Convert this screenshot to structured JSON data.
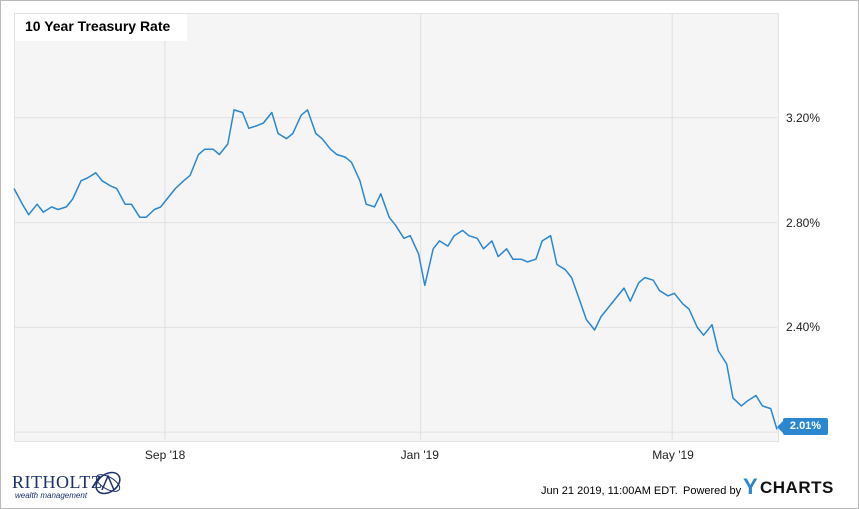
{
  "chart_data": {
    "type": "line",
    "title": "10 Year Treasury Rate",
    "x_ticks": [
      "Sep '18",
      "Jan '19",
      "May '19"
    ],
    "y_ticks": [
      "2.40%",
      "2.80%",
      "3.20%"
    ],
    "ylim": [
      1.97,
      3.6
    ],
    "grid": true,
    "last_value_label": "2.01%",
    "series": [
      {
        "color": "#2a87d0",
        "x": [
          "2018-06-21",
          "2018-06-25",
          "2018-06-28",
          "2018-07-02",
          "2018-07-05",
          "2018-07-09",
          "2018-07-12",
          "2018-07-16",
          "2018-07-19",
          "2018-07-23",
          "2018-07-26",
          "2018-07-30",
          "2018-08-02",
          "2018-08-06",
          "2018-08-09",
          "2018-08-13",
          "2018-08-16",
          "2018-08-20",
          "2018-08-23",
          "2018-08-27",
          "2018-08-30",
          "2018-09-03",
          "2018-09-06",
          "2018-09-10",
          "2018-09-13",
          "2018-09-17",
          "2018-09-20",
          "2018-09-24",
          "2018-09-27",
          "2018-10-01",
          "2018-10-04",
          "2018-10-08",
          "2018-10-11",
          "2018-10-15",
          "2018-10-18",
          "2018-10-22",
          "2018-10-25",
          "2018-10-29",
          "2018-11-01",
          "2018-11-05",
          "2018-11-08",
          "2018-11-12",
          "2018-11-15",
          "2018-11-19",
          "2018-11-22",
          "2018-11-26",
          "2018-11-29",
          "2018-12-03",
          "2018-12-06",
          "2018-12-10",
          "2018-12-13",
          "2018-12-17",
          "2018-12-20",
          "2018-12-24",
          "2018-12-27",
          "2018-12-31",
          "2019-01-03",
          "2019-01-07",
          "2019-01-10",
          "2019-01-14",
          "2019-01-17",
          "2019-01-21",
          "2019-01-24",
          "2019-01-28",
          "2019-01-31",
          "2019-02-04",
          "2019-02-07",
          "2019-02-11",
          "2019-02-14",
          "2019-02-18",
          "2019-02-21",
          "2019-02-25",
          "2019-02-28",
          "2019-03-04",
          "2019-03-07",
          "2019-03-11",
          "2019-03-14",
          "2019-03-18",
          "2019-03-21",
          "2019-03-25",
          "2019-03-28",
          "2019-04-01",
          "2019-04-04",
          "2019-04-08",
          "2019-04-11",
          "2019-04-15",
          "2019-04-18",
          "2019-04-22",
          "2019-04-25",
          "2019-04-29",
          "2019-05-02",
          "2019-05-06",
          "2019-05-09",
          "2019-05-13",
          "2019-05-16",
          "2019-05-20",
          "2019-05-23",
          "2019-05-27",
          "2019-05-30",
          "2019-06-03",
          "2019-06-06",
          "2019-06-10",
          "2019-06-13",
          "2019-06-17",
          "2019-06-20"
        ],
        "values": [
          2.93,
          2.87,
          2.83,
          2.87,
          2.84,
          2.86,
          2.85,
          2.86,
          2.89,
          2.96,
          2.97,
          2.99,
          2.96,
          2.94,
          2.93,
          2.87,
          2.87,
          2.82,
          2.82,
          2.85,
          2.86,
          2.9,
          2.93,
          2.96,
          2.98,
          3.06,
          3.08,
          3.08,
          3.06,
          3.1,
          3.23,
          3.22,
          3.16,
          3.17,
          3.18,
          3.22,
          3.14,
          3.12,
          3.14,
          3.21,
          3.23,
          3.14,
          3.12,
          3.08,
          3.06,
          3.05,
          3.03,
          2.96,
          2.87,
          2.86,
          2.91,
          2.82,
          2.79,
          2.74,
          2.75,
          2.68,
          2.56,
          2.7,
          2.73,
          2.71,
          2.75,
          2.77,
          2.75,
          2.74,
          2.7,
          2.73,
          2.67,
          2.7,
          2.66,
          2.66,
          2.65,
          2.66,
          2.73,
          2.75,
          2.64,
          2.62,
          2.59,
          2.5,
          2.43,
          2.39,
          2.44,
          2.48,
          2.51,
          2.55,
          2.5,
          2.57,
          2.59,
          2.58,
          2.54,
          2.52,
          2.53,
          2.49,
          2.47,
          2.4,
          2.37,
          2.41,
          2.31,
          2.26,
          2.13,
          2.1,
          2.12,
          2.14,
          2.1,
          2.09,
          2.01
        ]
      }
    ]
  },
  "footer": {
    "timestamp": "Jun 21 2019, 11:00AM EDT.",
    "powered_by": "Powered by",
    "brand_y": "Y",
    "brand_rest": "CHARTS"
  },
  "logo": {
    "name": "RITHOLTZ",
    "tagline": "wealth management"
  }
}
